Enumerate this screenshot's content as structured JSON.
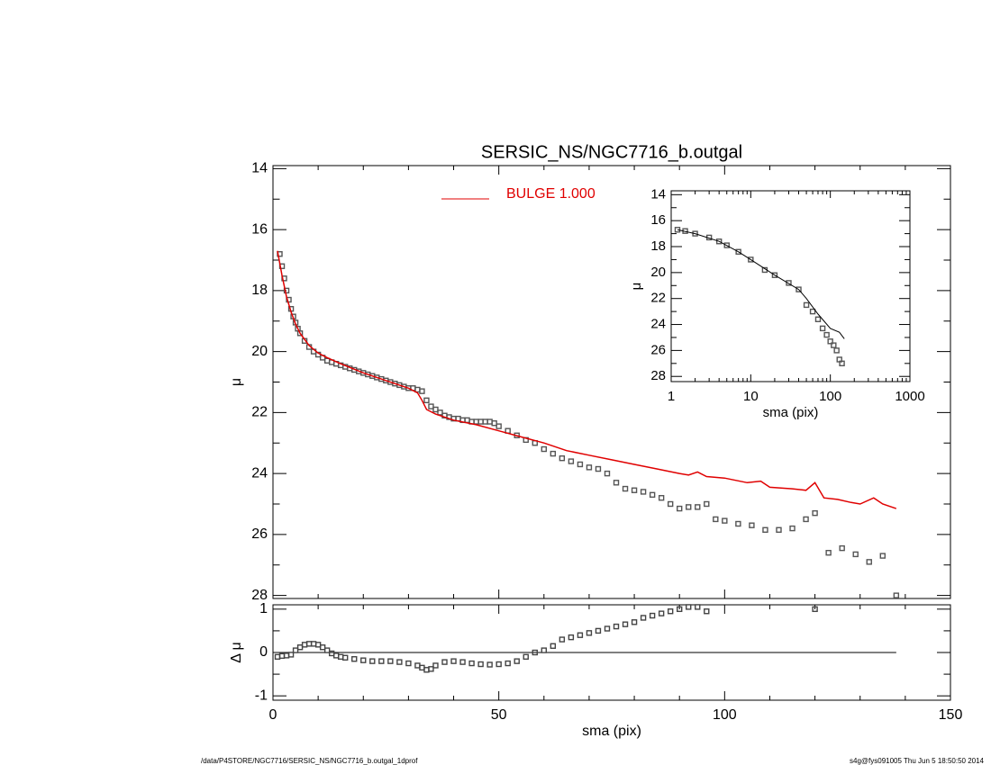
{
  "chart_data": [
    {
      "type": "scatter",
      "title": "SERSIC_NS/NGC7716_b.outgal",
      "ylabel": "μ",
      "xlim": [
        0,
        150
      ],
      "ylim": [
        13.9,
        28.1
      ],
      "y_reversed": true,
      "yticks": [
        14,
        16,
        18,
        20,
        22,
        24,
        26,
        28
      ],
      "series": [
        {
          "style": "points",
          "color": "#555555",
          "x": [
            1.5,
            2,
            2.5,
            3,
            3.5,
            4,
            4.5,
            5,
            5.5,
            6,
            7,
            8,
            9,
            10,
            11,
            12,
            13,
            14,
            15,
            16,
            17,
            18,
            19,
            20,
            21,
            22,
            23,
            24,
            25,
            26,
            27,
            28,
            29,
            30,
            31,
            32,
            33,
            34,
            35,
            36,
            37,
            38,
            39,
            40,
            41,
            42,
            43,
            44,
            45,
            46,
            47,
            48,
            49,
            50,
            52,
            54,
            56,
            58,
            60,
            62,
            64,
            66,
            68,
            70,
            72,
            74,
            76,
            78,
            80,
            82,
            84,
            86,
            88,
            90,
            92,
            94,
            96,
            98,
            100,
            103,
            106,
            109,
            112,
            115,
            118,
            120,
            123,
            126,
            129,
            132,
            135,
            138
          ],
          "values": [
            16.8,
            17.2,
            17.6,
            18.0,
            18.3,
            18.6,
            18.85,
            19.05,
            19.25,
            19.4,
            19.65,
            19.85,
            20.0,
            20.1,
            20.2,
            20.3,
            20.35,
            20.4,
            20.45,
            20.5,
            20.55,
            20.6,
            20.65,
            20.7,
            20.75,
            20.8,
            20.85,
            20.9,
            20.95,
            21.0,
            21.05,
            21.1,
            21.15,
            21.2,
            21.2,
            21.25,
            21.3,
            21.6,
            21.8,
            21.9,
            22.0,
            22.1,
            22.15,
            22.2,
            22.2,
            22.25,
            22.25,
            22.3,
            22.3,
            22.3,
            22.3,
            22.3,
            22.35,
            22.45,
            22.6,
            22.75,
            22.9,
            23.0,
            23.2,
            23.35,
            23.5,
            23.6,
            23.7,
            23.8,
            23.85,
            24.0,
            24.3,
            24.5,
            24.55,
            24.6,
            24.7,
            24.8,
            25.0,
            25.15,
            25.1,
            25.1,
            25.0,
            25.5,
            25.55,
            25.65,
            25.7,
            25.85,
            25.85,
            25.8,
            25.5,
            25.3,
            26.6,
            26.45,
            26.65,
            26.9,
            26.7,
            28.0
          ]
        },
        {
          "style": "line",
          "color": "#e00000",
          "name": "BULGE  1.000",
          "x": [
            1,
            2,
            3,
            4,
            5,
            6,
            8,
            10,
            12,
            15,
            20,
            25,
            30,
            32,
            33,
            34,
            36,
            40,
            45,
            50,
            55,
            60,
            65,
            70,
            75,
            80,
            85,
            90,
            92,
            94,
            96,
            100,
            105,
            108,
            110,
            115,
            118,
            120,
            122,
            125,
            128,
            130,
            133,
            135,
            138
          ],
          "values": [
            16.7,
            17.5,
            18.2,
            18.7,
            19.1,
            19.4,
            19.8,
            20.05,
            20.2,
            20.4,
            20.7,
            20.95,
            21.2,
            21.35,
            21.6,
            21.9,
            22.05,
            22.25,
            22.4,
            22.6,
            22.8,
            23.0,
            23.25,
            23.4,
            23.55,
            23.7,
            23.85,
            24.0,
            24.05,
            23.95,
            24.1,
            24.15,
            24.3,
            24.25,
            24.45,
            24.5,
            24.55,
            24.3,
            24.8,
            24.85,
            24.95,
            25.0,
            24.8,
            25.0,
            25.15
          ]
        }
      ]
    },
    {
      "type": "scatter",
      "xlabel": "sma (pix)",
      "ylabel": "Δ μ",
      "xlim": [
        0,
        150
      ],
      "ylim": [
        -1.1,
        1.1
      ],
      "xticks": [
        0,
        50,
        100,
        150
      ],
      "yticks": [
        -1,
        0,
        1
      ],
      "hline": {
        "y": 0,
        "x": [
          0,
          138
        ]
      },
      "series": [
        {
          "style": "points",
          "color": "#444444",
          "x": [
            1,
            2,
            3,
            4,
            5,
            6,
            7,
            8,
            9,
            10,
            11,
            12,
            13,
            14,
            15,
            16,
            18,
            20,
            22,
            24,
            26,
            28,
            30,
            32,
            33,
            34,
            35,
            36,
            38,
            40,
            42,
            44,
            46,
            48,
            50,
            52,
            54,
            56,
            58,
            60,
            62,
            64,
            66,
            68,
            70,
            72,
            74,
            76,
            78,
            80,
            82,
            84,
            86,
            88,
            90,
            92,
            94,
            96,
            120
          ],
          "values": [
            -0.1,
            -0.08,
            -0.07,
            -0.05,
            0.05,
            0.12,
            0.18,
            0.2,
            0.2,
            0.18,
            0.12,
            0.05,
            -0.02,
            -0.07,
            -0.1,
            -0.12,
            -0.15,
            -0.18,
            -0.2,
            -0.2,
            -0.2,
            -0.22,
            -0.25,
            -0.3,
            -0.35,
            -0.4,
            -0.38,
            -0.3,
            -0.22,
            -0.2,
            -0.22,
            -0.25,
            -0.27,
            -0.28,
            -0.27,
            -0.25,
            -0.2,
            -0.1,
            0.0,
            0.05,
            0.15,
            0.3,
            0.35,
            0.4,
            0.45,
            0.5,
            0.55,
            0.6,
            0.65,
            0.7,
            0.8,
            0.85,
            0.9,
            0.95,
            1.0,
            1.05,
            1.05,
            0.95,
            1.0
          ]
        }
      ]
    },
    {
      "type": "scatter",
      "xlabel": "sma (pix)",
      "ylabel": "μ",
      "xscale": "log",
      "xlim": [
        1,
        1000
      ],
      "ylim": [
        13.7,
        28.4
      ],
      "y_reversed": true,
      "xticks": [
        1,
        10,
        100,
        1000
      ],
      "yticks": [
        14,
        16,
        18,
        20,
        22,
        24,
        26,
        28
      ],
      "series": [
        {
          "style": "points",
          "color": "#555555",
          "x": [
            1.2,
            1.5,
            2,
            3,
            4,
            5,
            7,
            10,
            15,
            20,
            30,
            40,
            50,
            60,
            70,
            80,
            90,
            100,
            110,
            120,
            130,
            140
          ],
          "values": [
            16.7,
            16.8,
            17.0,
            17.3,
            17.6,
            17.9,
            18.4,
            19.0,
            19.8,
            20.2,
            20.8,
            21.3,
            22.5,
            23.0,
            23.6,
            24.3,
            24.8,
            25.3,
            25.6,
            26.0,
            26.7,
            27.0
          ]
        },
        {
          "style": "line",
          "color": "#000000",
          "x": [
            1.2,
            2,
            4,
            7,
            10,
            20,
            40,
            50,
            70,
            100,
            130,
            150
          ],
          "values": [
            16.7,
            17.0,
            17.6,
            18.4,
            19.0,
            20.2,
            21.3,
            22.0,
            23.2,
            24.3,
            24.6,
            25.1
          ]
        }
      ]
    }
  ],
  "footer": {
    "left": "/data/P4STORE/NGC7716/SERSIC_NS/NGC7716_b.outgal_1dprof",
    "right": "s4g@fys091005  Thu Jun  5 18:50:50 2014"
  }
}
